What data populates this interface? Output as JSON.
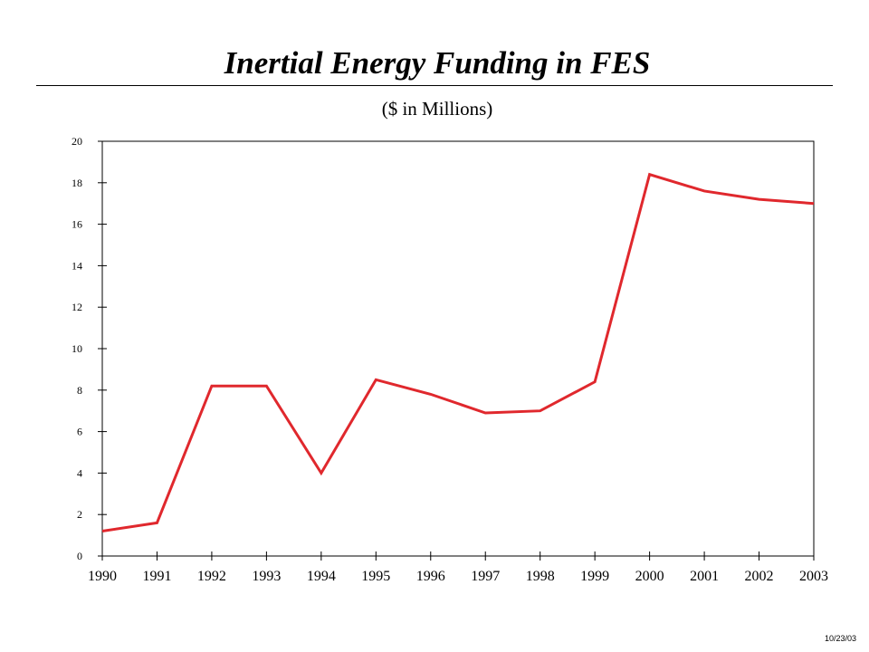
{
  "chart_data": {
    "type": "line",
    "title": "Inertial Energy Funding in FES",
    "subtitle": "($ in Millions)",
    "xlabel": "",
    "ylabel": "",
    "categories": [
      "1990",
      "1991",
      "1992",
      "1993",
      "1994",
      "1995",
      "1996",
      "1997",
      "1998",
      "1999",
      "2000",
      "2001",
      "2002",
      "2003"
    ],
    "series": [
      {
        "values": [
          1.2,
          1.6,
          8.2,
          8.2,
          4.0,
          8.5,
          7.8,
          6.9,
          7.0,
          8.4,
          18.4,
          17.6,
          17.2,
          17.0
        ],
        "color": "#e0282d"
      }
    ],
    "ylim": [
      0,
      20
    ],
    "yticks": [
      0,
      2,
      4,
      6,
      8,
      10,
      12,
      14,
      16,
      18,
      20
    ],
    "grid": false,
    "legend": "none"
  },
  "footer": {
    "date": "10/23/03"
  }
}
